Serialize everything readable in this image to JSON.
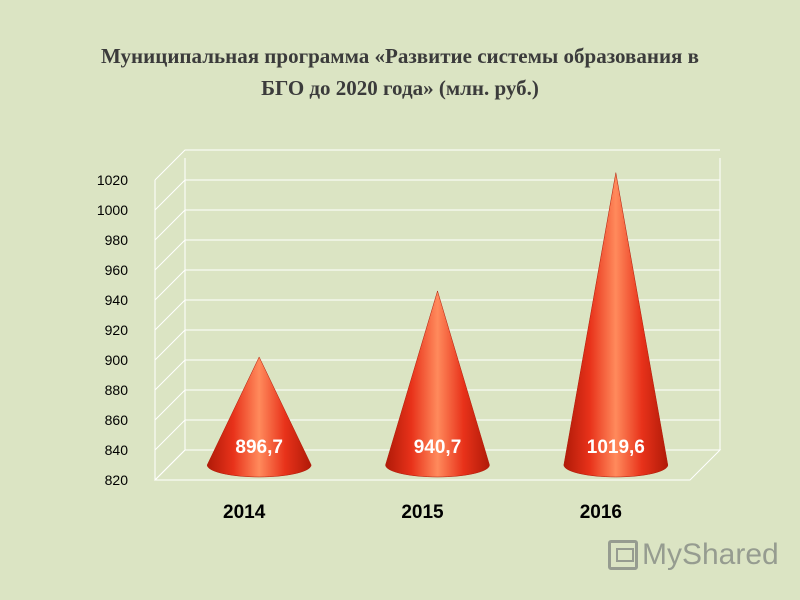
{
  "title": {
    "line1": "Муниципальная программа «Развитие системы образования в",
    "line2": "БГО до 2020 года» (млн. руб.)"
  },
  "watermark": {
    "text": "MyShared"
  },
  "colors": {
    "background": "#dbe4c3",
    "cone_light": "#ff8a5c",
    "cone_main": "#e8321a",
    "cone_dark": "#b01a08",
    "grid": "#ffffff",
    "axis_text": "#000000",
    "label_text": "#ffffff"
  },
  "chart_data": {
    "type": "bar",
    "shape": "cone",
    "categories": [
      "2014",
      "2015",
      "2016"
    ],
    "values": [
      896.7,
      940.7,
      1019.6
    ],
    "data_labels": [
      "896,7",
      "940,7",
      "1019,6"
    ],
    "title": "Муниципальная программа «Развитие системы образования в БГО до 2020 года» (млн. руб.)",
    "xlabel": "",
    "ylabel": "",
    "ylim": [
      820,
      1020
    ],
    "yticks": [
      820,
      840,
      860,
      880,
      900,
      920,
      940,
      960,
      980,
      1000,
      1020
    ],
    "grid": true,
    "legend": "none"
  }
}
